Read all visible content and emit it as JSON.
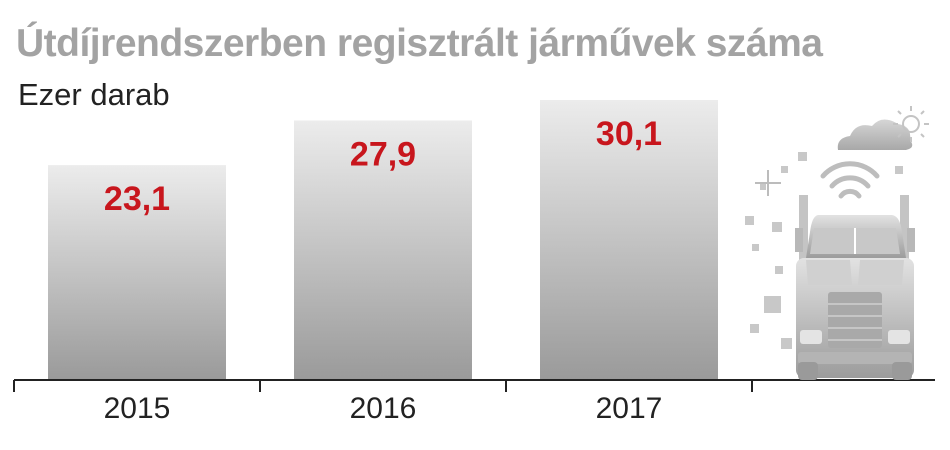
{
  "chart_data": {
    "type": "bar",
    "title": "Útdíjrendszerben regisztrált járművek száma",
    "subtitle": "Ezer darab",
    "categories": [
      "2015",
      "2016",
      "2017"
    ],
    "values": [
      23.1,
      27.9,
      30.1
    ],
    "data_labels": [
      "23,1",
      "27,9",
      "30,1"
    ],
    "xlabel": "",
    "ylabel": "",
    "ylim": [
      0,
      30.1
    ],
    "grid": false,
    "legend": "none",
    "colors": {
      "bar_top": "#ececec",
      "bar_bottom": "#9a9a9a",
      "label": "#c8161d",
      "axis": "#222222"
    }
  },
  "decoration": {
    "icons": [
      "truck-icon",
      "wifi-signal-icon",
      "cloud-icon",
      "sun-icon",
      "sparkle-icon"
    ]
  }
}
